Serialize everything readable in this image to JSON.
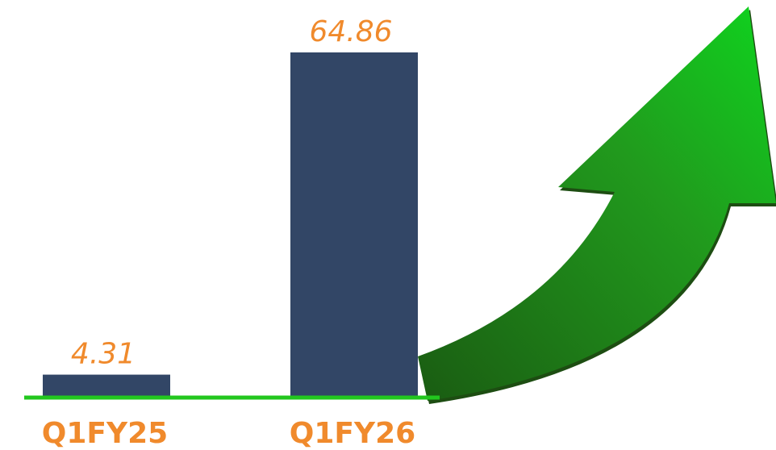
{
  "chart_data": {
    "type": "bar",
    "categories": [
      "Q1FY25",
      "Q1FY26"
    ],
    "values": [
      4.31,
      64.86
    ],
    "color": "#324666",
    "label_color": "#f08a2c",
    "baseline_color": "#22c71e"
  }
}
